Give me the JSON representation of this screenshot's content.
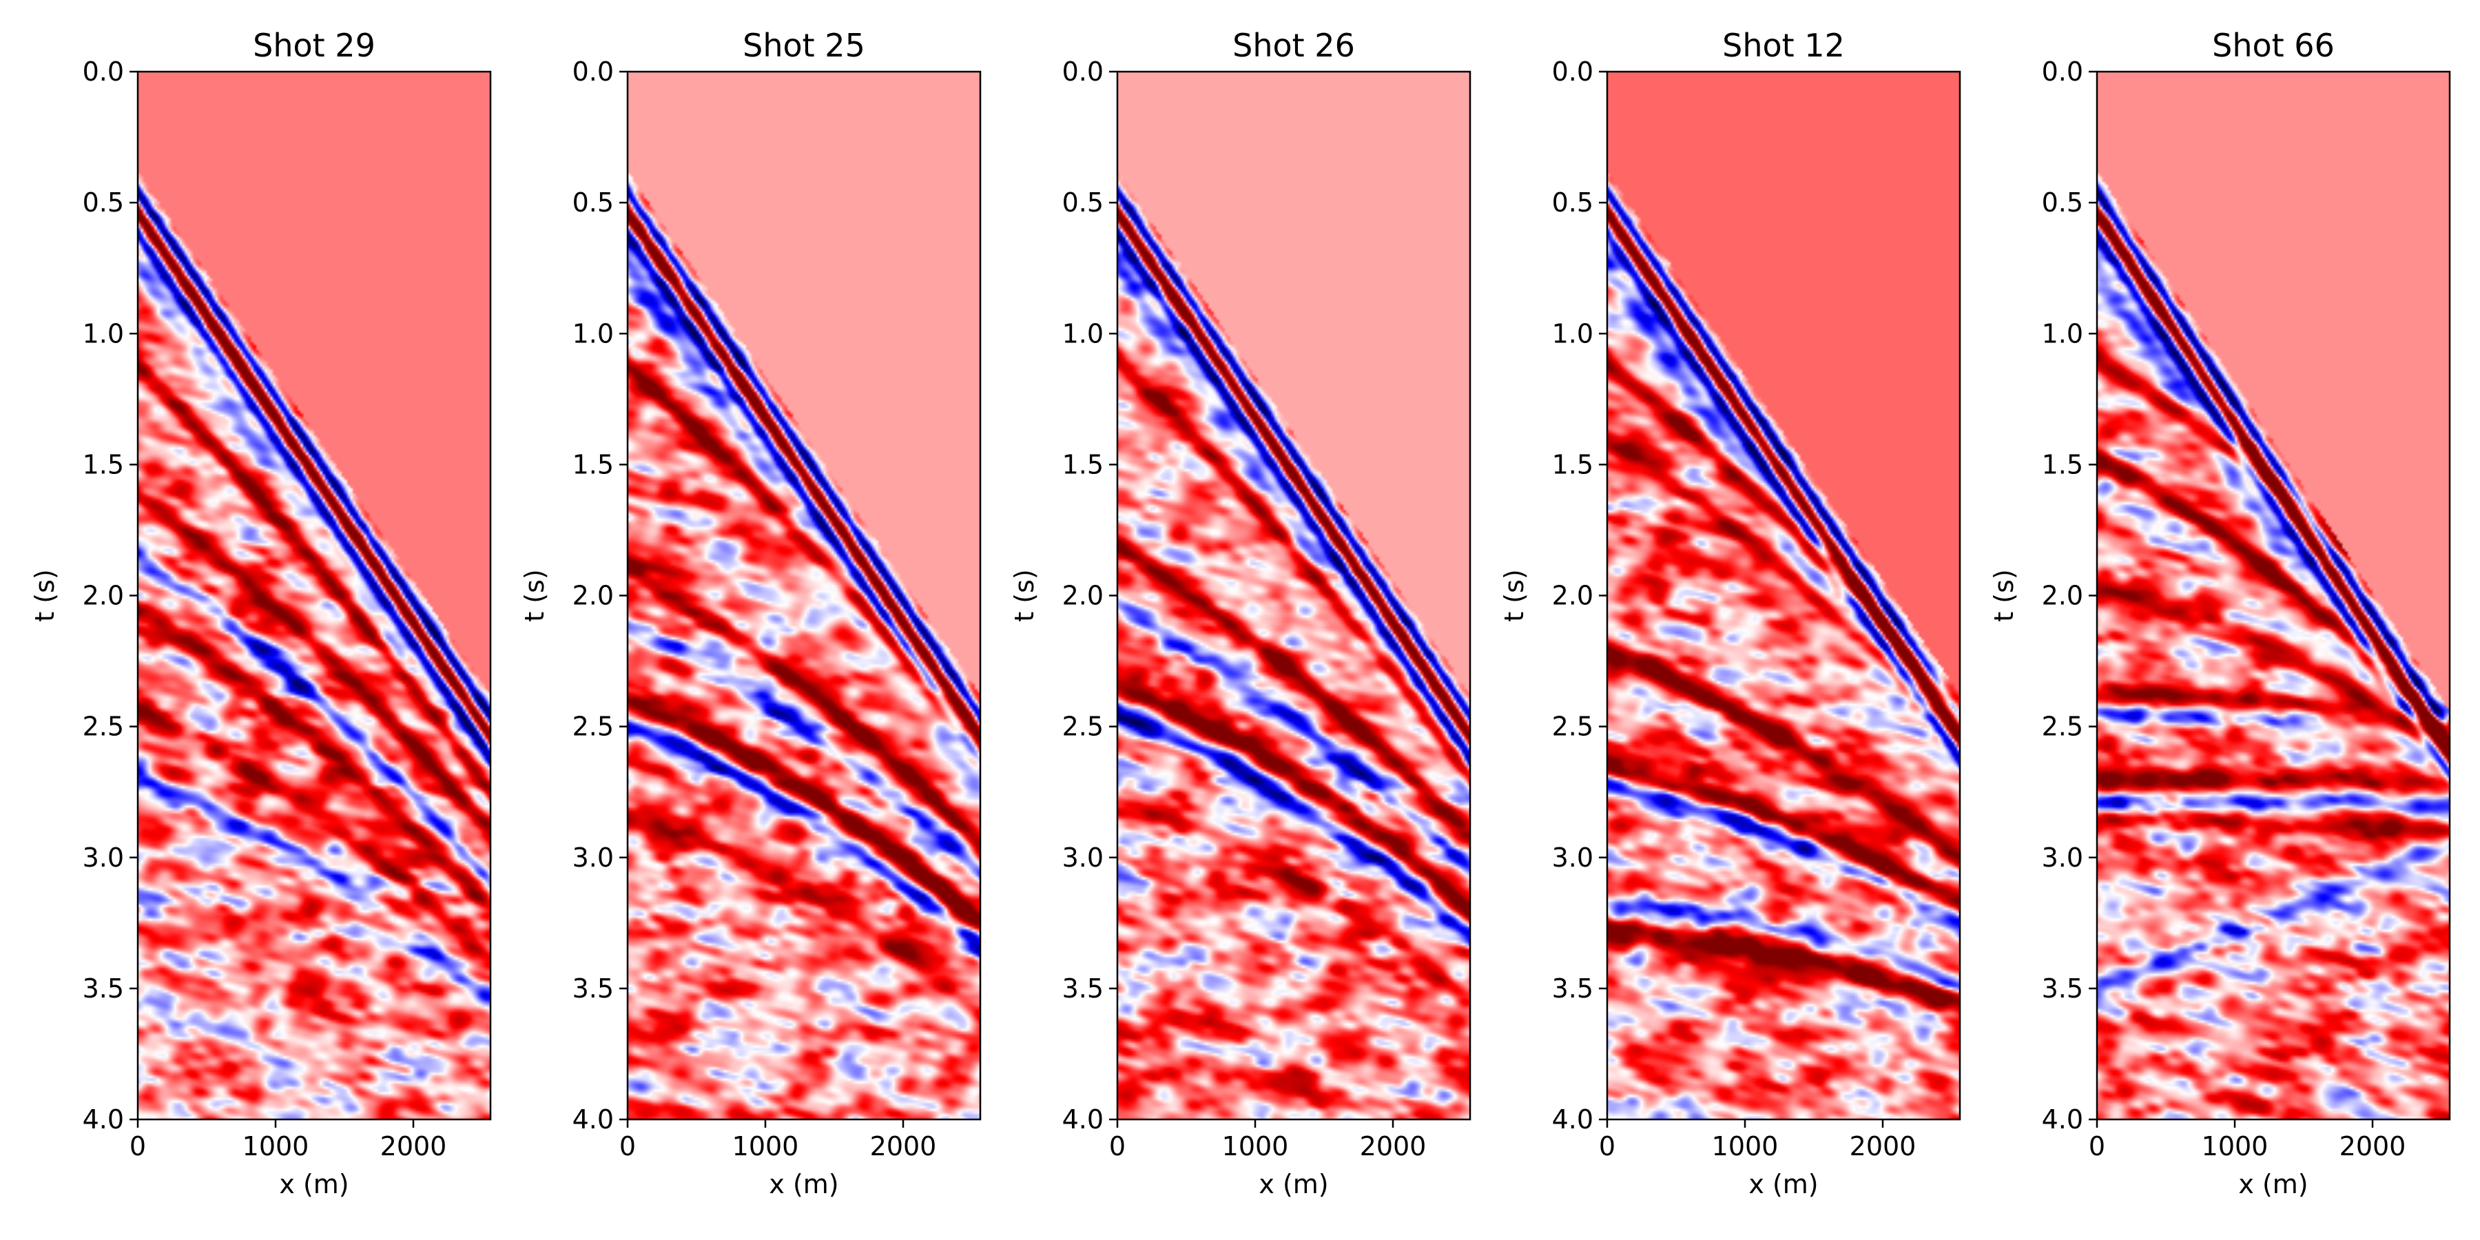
{
  "figure": {
    "background": "#ffffff",
    "colormap": "seismic",
    "colors": {
      "background_wash": "#ffd4d4",
      "positive": "#e00000",
      "negative": "#1a22ff",
      "extreme_positive": "#7a0000",
      "extreme_negative": "#00003c",
      "zero": "#ffffff"
    }
  },
  "chart_data": [
    {
      "type": "heatmap",
      "title": "Shot 29",
      "xlabel": "x (m)",
      "ylabel": "t (s)",
      "xlim": [
        0,
        2560
      ],
      "ylim": [
        4.0,
        0.0
      ],
      "xticks": [
        "0",
        "1000",
        "2000"
      ],
      "yticks": [
        "0.0",
        "0.5",
        "1.0",
        "1.5",
        "2.0",
        "2.5",
        "3.0",
        "3.5",
        "4.0"
      ],
      "background_level": 0.26,
      "direct_wave_t0": 0.42,
      "direct_wave_t_end": 2.42,
      "events": [
        {
          "t0": 1.12,
          "t_end": 2.75,
          "curv": 0.25,
          "amp": 0.8
        },
        {
          "t0": 1.62,
          "t_end": 2.9,
          "curv": 0.3,
          "amp": 0.75
        },
        {
          "t0": 1.85,
          "t_end": 3.1,
          "curv": 0.35,
          "amp": -0.7
        },
        {
          "t0": 2.05,
          "t_end": 3.2,
          "curv": 0.3,
          "amp": 0.65
        },
        {
          "t0": 2.45,
          "t_end": 3.4,
          "curv": 0.4,
          "amp": 0.55
        },
        {
          "t0": 2.7,
          "t_end": 3.55,
          "curv": 0.4,
          "amp": -0.45
        }
      ]
    },
    {
      "type": "heatmap",
      "title": "Shot 25",
      "xlabel": "x (m)",
      "ylabel": "t (s)",
      "xlim": [
        0,
        2560
      ],
      "ylim": [
        4.0,
        0.0
      ],
      "xticks": [
        "0",
        "1000",
        "2000"
      ],
      "yticks": [
        "0.0",
        "0.5",
        "1.0",
        "1.5",
        "2.0",
        "2.5",
        "3.0",
        "3.5",
        "4.0"
      ],
      "background_level": 0.18,
      "direct_wave_t0": 0.42,
      "direct_wave_t_end": 2.42,
      "events": [
        {
          "t0": 1.12,
          "t_end": 2.6,
          "curv": 0.3,
          "amp": 0.75
        },
        {
          "t0": 1.9,
          "t_end": 2.95,
          "curv": 0.3,
          "amp": 0.85
        },
        {
          "t0": 2.12,
          "t_end": 3.05,
          "curv": 0.3,
          "amp": -0.6
        },
        {
          "t0": 2.4,
          "t_end": 3.25,
          "curv": 0.35,
          "amp": 0.9
        },
        {
          "t0": 2.5,
          "t_end": 3.35,
          "curv": 0.35,
          "amp": -0.75
        },
        {
          "t0": 2.85,
          "t_end": 3.6,
          "curv": 0.4,
          "amp": 0.5
        }
      ]
    },
    {
      "type": "heatmap",
      "title": "Shot 26",
      "xlabel": "x (m)",
      "ylabel": "t (s)",
      "xlim": [
        0,
        2560
      ],
      "ylim": [
        4.0,
        0.0
      ],
      "xticks": [
        "0",
        "1000",
        "2000"
      ],
      "yticks": [
        "0.0",
        "0.5",
        "1.0",
        "1.5",
        "2.0",
        "2.5",
        "3.0",
        "3.5",
        "4.0"
      ],
      "background_level": 0.17,
      "direct_wave_t0": 0.42,
      "direct_wave_t_end": 2.42,
      "events": [
        {
          "t0": 1.1,
          "t_end": 2.7,
          "curv": 0.3,
          "amp": 0.75
        },
        {
          "t0": 1.82,
          "t_end": 2.92,
          "curv": 0.3,
          "amp": 0.85
        },
        {
          "t0": 2.05,
          "t_end": 3.05,
          "curv": 0.3,
          "amp": -0.6
        },
        {
          "t0": 2.35,
          "t_end": 3.2,
          "curv": 0.35,
          "amp": 0.9
        },
        {
          "t0": 2.45,
          "t_end": 3.3,
          "curv": 0.35,
          "amp": -0.8
        },
        {
          "t0": 2.8,
          "t_end": 3.55,
          "curv": 0.4,
          "amp": 0.5
        }
      ]
    },
    {
      "type": "heatmap",
      "title": "Shot 12",
      "xlabel": "x (m)",
      "ylabel": "t (s)",
      "xlim": [
        0,
        2560
      ],
      "ylim": [
        4.0,
        0.0
      ],
      "xticks": [
        "0",
        "1000",
        "2000"
      ],
      "yticks": [
        "0.0",
        "0.5",
        "1.0",
        "1.5",
        "2.0",
        "2.5",
        "3.0",
        "3.5",
        "4.0"
      ],
      "background_level": 0.3,
      "direct_wave_t0": 0.42,
      "direct_wave_t_end": 2.42,
      "events": [
        {
          "t0": 1.12,
          "t_end": 2.45,
          "curv": 0.3,
          "amp": 0.85
        },
        {
          "t0": 1.4,
          "t_end": 2.55,
          "curv": 0.3,
          "amp": 0.6
        },
        {
          "t0": 2.22,
          "t_end": 3.0,
          "curv": 0.25,
          "amp": 0.9
        },
        {
          "t0": 2.65,
          "t_end": 3.18,
          "curv": 0.2,
          "amp": 0.95
        },
        {
          "t0": 2.72,
          "t_end": 3.24,
          "curv": 0.2,
          "amp": -0.8
        },
        {
          "t0": 3.27,
          "t_end": 3.55,
          "curv": 0.15,
          "amp": 1.0
        },
        {
          "t0": 3.17,
          "t_end": 3.47,
          "curv": 0.15,
          "amp": -0.5
        }
      ]
    },
    {
      "type": "heatmap",
      "title": "Shot 66",
      "xlabel": "x (m)",
      "ylabel": "t (s)",
      "xlim": [
        0,
        2560
      ],
      "ylim": [
        4.0,
        0.0
      ],
      "xticks": [
        "0",
        "1000",
        "2000"
      ],
      "yticks": [
        "0.0",
        "0.5",
        "1.0",
        "1.5",
        "2.0",
        "2.5",
        "3.0",
        "3.5",
        "4.0"
      ],
      "background_level": 0.22,
      "direct_wave_t0": 0.42,
      "direct_wave_t_end": 2.48,
      "events": [
        {
          "t0": 1.1,
          "t_end": 2.2,
          "curv": 0.3,
          "amp": 0.75
        },
        {
          "t0": 1.48,
          "t_end": 2.55,
          "curv": 0.4,
          "amp": 0.85
        },
        {
          "t0": 1.97,
          "t_end": 2.6,
          "curv": 0.3,
          "amp": 0.65
        },
        {
          "t0": 2.38,
          "t_end": 2.5,
          "curv": 0.1,
          "amp": 0.85
        },
        {
          "t0": 2.45,
          "t_end": 2.45,
          "curv": 0.0,
          "amp": -0.65
        },
        {
          "t0": 2.7,
          "t_end": 2.72,
          "curv": 0.0,
          "amp": 0.7
        },
        {
          "t0": 2.78,
          "t_end": 2.8,
          "curv": 0.0,
          "amp": -0.6
        },
        {
          "t0": 2.85,
          "t_end": 2.9,
          "curv": 0.0,
          "amp": 0.55
        },
        {
          "t0": 3.5,
          "t_end": 2.95,
          "curv": 0.0,
          "amp": -0.5
        }
      ]
    }
  ]
}
